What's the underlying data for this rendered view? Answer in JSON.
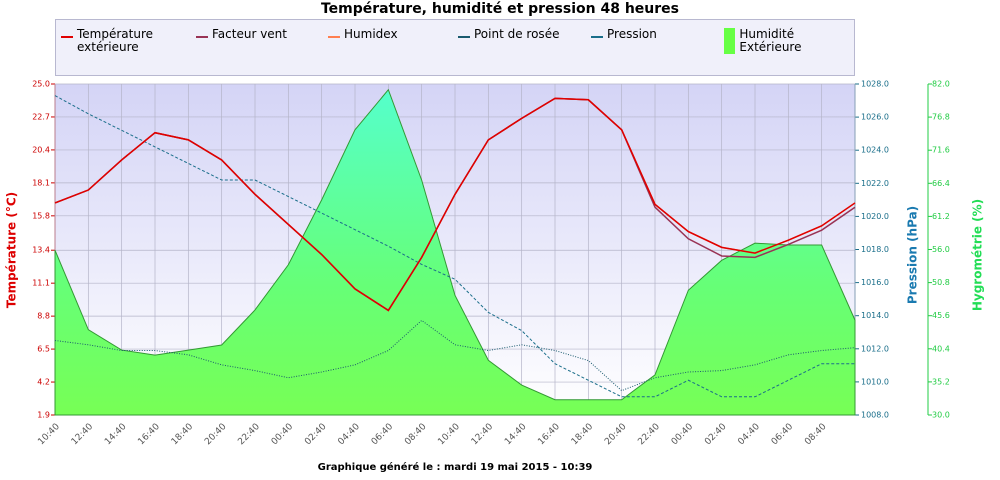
{
  "chart_data": {
    "type": "line",
    "title": "Température, humidité et pression 48 heures",
    "footer": "Graphique généré le : mardi 19 mai 2015 - 10:39",
    "ylabel": "Température (°C)",
    "y2label": "Pression (hPa)",
    "y3label": "Hygrométrie (%)",
    "categories": [
      "10:40",
      "12:40",
      "14:40",
      "16:40",
      "18:40",
      "20:40",
      "22:40",
      "00:40",
      "02:40",
      "04:40",
      "06:40",
      "08:40",
      "10:40",
      "12:40",
      "14:40",
      "16:40",
      "18:40",
      "20:40",
      "22:40",
      "00:40",
      "02:40",
      "04:40",
      "06:40",
      "08:40",
      null
    ],
    "ylim": [
      1.9,
      25.0
    ],
    "yticks": [
      1.9,
      4.2,
      6.5,
      8.8,
      11.1,
      13.4,
      15.8,
      18.1,
      20.4,
      22.7,
      {
        "value": 25,
        "label": "25.0"
      }
    ],
    "y2lim": [
      1008,
      1028
    ],
    "y2ticks": [
      {
        "value": 1008,
        "label": "1008.0"
      },
      {
        "value": 1010,
        "label": "1010.0"
      },
      {
        "value": 1012,
        "label": "1012.0"
      },
      {
        "value": 1014,
        "label": "1014.0"
      },
      {
        "value": 1016,
        "label": "1016.0"
      },
      {
        "value": 1018,
        "label": "1018.0"
      },
      {
        "value": 1020,
        "label": "1020.0"
      },
      {
        "value": 1022,
        "label": "1022.0"
      },
      {
        "value": 1024,
        "label": "1024.0"
      },
      {
        "value": 1026,
        "label": "1026.0"
      },
      {
        "value": 1028,
        "label": "1028.0"
      }
    ],
    "y3lim": [
      30,
      82
    ],
    "y3ticks": [
      {
        "value": 30,
        "label": "30.0"
      },
      35.2,
      40.4,
      45.6,
      50.8,
      {
        "value": 56,
        "label": "56.0"
      },
      61.2,
      66.4,
      71.6,
      76.8,
      {
        "value": 82,
        "label": "82.0"
      }
    ],
    "grid": true,
    "series": [
      {
        "name": "Humidité Extérieure",
        "color": "#66ff44",
        "axis": "y3",
        "style": "area",
        "values": [
          55.9,
          43.4,
          40.2,
          39.4,
          40.2,
          41.0,
          46.5,
          53.6,
          63.8,
          74.8,
          81.1,
          66.9,
          48.8,
          38.6,
          34.7,
          32.4,
          32.4,
          32.4,
          36.3,
          49.6,
          54.3,
          57.0,
          56.7,
          56.7,
          44.9
        ]
      },
      {
        "name": "Pression",
        "color": "#1a6e8a",
        "axis": "y2",
        "style": "dashed",
        "values": [
          1027.3,
          1026.2,
          1025.2,
          1024.2,
          1023.2,
          1022.2,
          1022.2,
          1021.2,
          1020.2,
          1019.2,
          1018.2,
          1017.1,
          1016.2,
          1014.2,
          1013.1,
          1011.1,
          1010.1,
          1009.1,
          1009.1,
          1010.1,
          1009.1,
          1009.1,
          1010.1,
          1011.1,
          1011.1
        ]
      },
      {
        "name": "Point de rosée",
        "color": "#1a5a6e",
        "axis": "y",
        "style": "dotted",
        "values": [
          7.1,
          6.8,
          6.4,
          6.4,
          6.1,
          5.4,
          5.0,
          4.5,
          4.9,
          5.4,
          6.4,
          8.5,
          6.8,
          6.4,
          6.8,
          6.4,
          5.7,
          3.6,
          4.5,
          4.9,
          5.0,
          5.4,
          6.1,
          6.4,
          6.6
        ]
      },
      {
        "name": "Humidex",
        "color": "#ff7f50",
        "axis": "y",
        "style": "solid",
        "values": [
          16.7,
          17.6,
          19.7,
          21.6,
          21.1,
          19.7,
          17.3,
          15.2,
          13.1,
          10.7,
          9.2,
          12.9,
          17.3,
          21.1,
          22.6,
          24.0,
          23.9,
          21.8,
          16.6,
          14.7,
          13.6,
          13.2,
          14.1,
          15.1,
          16.7
        ]
      },
      {
        "name": "Facteur vent",
        "color": "#993355",
        "axis": "y",
        "style": "solid",
        "values": [
          16.7,
          17.6,
          19.7,
          21.6,
          21.1,
          19.7,
          17.3,
          15.2,
          13.1,
          10.7,
          9.2,
          12.9,
          17.3,
          21.1,
          22.6,
          24.0,
          23.9,
          21.8,
          16.4,
          14.2,
          13.0,
          12.9,
          13.8,
          14.8,
          16.4
        ]
      },
      {
        "name": "Température extérieure",
        "color": "#e00000",
        "axis": "y",
        "style": "solid",
        "values": [
          16.7,
          17.6,
          19.7,
          21.6,
          21.1,
          19.7,
          17.3,
          15.2,
          13.1,
          10.7,
          9.2,
          12.9,
          17.3,
          21.1,
          22.6,
          24.0,
          23.9,
          21.8,
          16.6,
          14.7,
          13.6,
          13.2,
          14.1,
          15.1,
          16.7
        ]
      }
    ]
  }
}
